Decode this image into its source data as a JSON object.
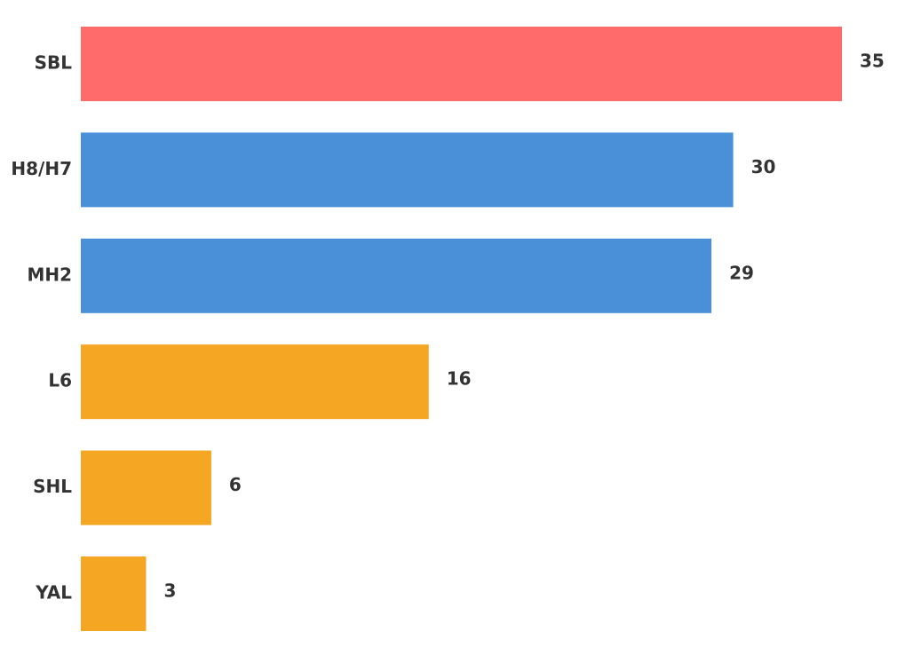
{
  "chart_data": {
    "type": "bar",
    "orientation": "horizontal",
    "title": "",
    "xlabel": "",
    "ylabel": "",
    "categories": [
      "SBL",
      "H8/H7",
      "MH2",
      "L6",
      "SHL",
      "YAL"
    ],
    "values": [
      35,
      30,
      29,
      16,
      6,
      3
    ],
    "bar_colors": [
      "#ff6b6b",
      "#4a90d9",
      "#4a90d9",
      "#f5a623",
      "#f5a623",
      "#f5a623"
    ],
    "xlim": [
      0,
      35
    ],
    "grid": false,
    "legend": "none",
    "data_labels": true
  }
}
